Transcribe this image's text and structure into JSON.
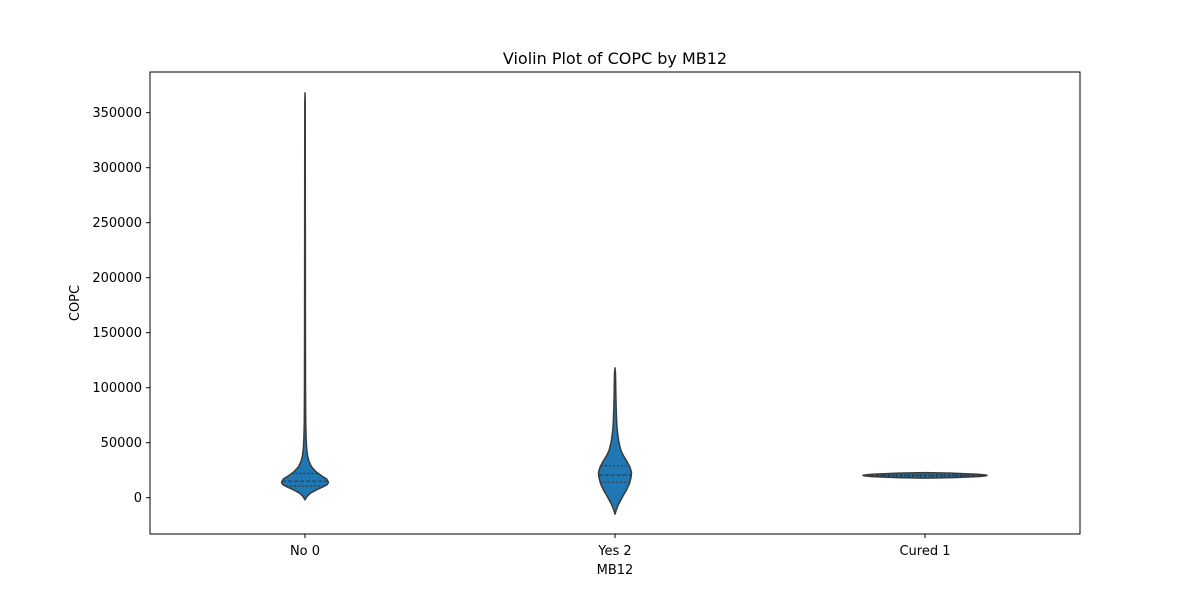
{
  "chart_data": {
    "type": "violin",
    "title": "Violin Plot of COPC by MB12",
    "xlabel": "MB12",
    "ylabel": "COPC",
    "categories": [
      "No 0",
      "Yes 2",
      "Cured 1"
    ],
    "ylim": [
      -33000,
      387000
    ],
    "yticks": [
      0,
      50000,
      100000,
      150000,
      200000,
      250000,
      300000,
      350000
    ],
    "ytick_labels": [
      "0",
      "50000",
      "100000",
      "150000",
      "200000",
      "250000",
      "300000",
      "350000"
    ],
    "grid": false,
    "colors": {
      "fill": "#1f77b4",
      "edge": "#3b3b3b",
      "axis": "#000000"
    },
    "violins": [
      {
        "category": "No 0",
        "quartiles": [
          10500,
          15000,
          22000
        ],
        "density": [
          [
            -2000,
            0.0
          ],
          [
            1000,
            0.08
          ],
          [
            4000,
            0.22
          ],
          [
            7000,
            0.48
          ],
          [
            10000,
            0.78
          ],
          [
            12000,
            0.95
          ],
          [
            14000,
            1.0
          ],
          [
            17000,
            0.92
          ],
          [
            20000,
            0.7
          ],
          [
            24000,
            0.45
          ],
          [
            28000,
            0.28
          ],
          [
            33000,
            0.17
          ],
          [
            38000,
            0.11
          ],
          [
            45000,
            0.07
          ],
          [
            55000,
            0.045
          ],
          [
            70000,
            0.03
          ],
          [
            100000,
            0.022
          ],
          [
            150000,
            0.018
          ],
          [
            200000,
            0.016
          ],
          [
            250000,
            0.014
          ],
          [
            300000,
            0.012
          ],
          [
            340000,
            0.01
          ],
          [
            360000,
            0.008
          ],
          [
            368000,
            0.0
          ]
        ]
      },
      {
        "category": "Yes 2",
        "quartiles": [
          14000,
          20500,
          29000
        ],
        "density": [
          [
            -15000,
            0.0
          ],
          [
            -11000,
            0.08
          ],
          [
            -7000,
            0.18
          ],
          [
            -3000,
            0.32
          ],
          [
            2000,
            0.5
          ],
          [
            7000,
            0.7
          ],
          [
            13000,
            0.88
          ],
          [
            19000,
            0.98
          ],
          [
            23000,
            1.0
          ],
          [
            28000,
            0.9
          ],
          [
            33000,
            0.72
          ],
          [
            38000,
            0.52
          ],
          [
            43000,
            0.36
          ],
          [
            50000,
            0.24
          ],
          [
            58000,
            0.16
          ],
          [
            66000,
            0.11
          ],
          [
            75000,
            0.085
          ],
          [
            85000,
            0.065
          ],
          [
            95000,
            0.05
          ],
          [
            105000,
            0.04
          ],
          [
            113000,
            0.03
          ],
          [
            118000,
            0.0
          ]
        ]
      },
      {
        "category": "Cured 1",
        "quartiles": [
          19500,
          20200,
          21000
        ],
        "density": [
          [
            17800,
            0.0
          ],
          [
            18300,
            0.45
          ],
          [
            18800,
            0.7
          ],
          [
            19300,
            0.88
          ],
          [
            19800,
            0.97
          ],
          [
            20300,
            1.0
          ],
          [
            20800,
            0.96
          ],
          [
            21300,
            0.85
          ],
          [
            21800,
            0.65
          ],
          [
            22300,
            0.42
          ],
          [
            22800,
            0.0
          ]
        ]
      }
    ],
    "widths_px": [
      47,
      33,
      124
    ]
  }
}
